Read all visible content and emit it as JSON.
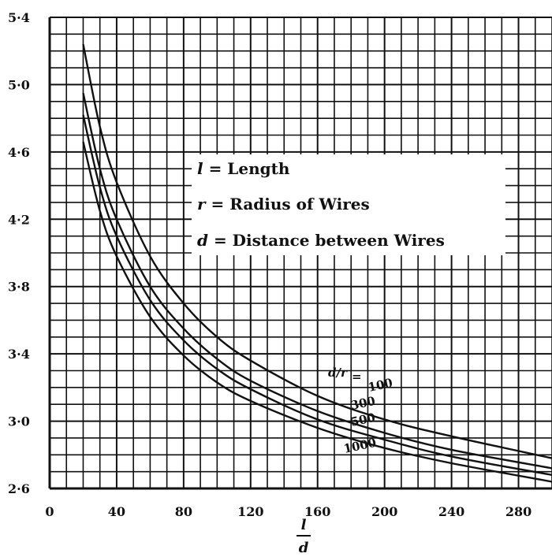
{
  "chart_data": {
    "type": "line",
    "title": "",
    "xlabel": {
      "numerator": "l",
      "denominator": "d"
    },
    "ylabel": "",
    "xlim": [
      0,
      300
    ],
    "ylim": [
      2.6,
      5.4
    ],
    "grid": true,
    "x_tick_labels": [
      "0",
      "40",
      "80",
      "120",
      "160",
      "200",
      "240",
      "280"
    ],
    "y_tick_labels": [
      "2·6",
      "3·0",
      "3·4",
      "3·8",
      "4·2",
      "4·6",
      "5·0",
      "5·4"
    ],
    "legend": {
      "placement": "center",
      "entries": [
        {
          "symbol": "l",
          "text": "Length"
        },
        {
          "symbol": "r",
          "text": "Radius of Wires"
        },
        {
          "symbol": "d",
          "text": "Distance between Wires"
        }
      ]
    },
    "curve_param_label": "d/r",
    "series": [
      {
        "name": "100",
        "x": [
          20,
          30,
          40,
          60,
          80,
          100,
          120,
          160,
          200,
          240,
          300
        ],
        "values": [
          5.24,
          4.75,
          4.42,
          3.98,
          3.7,
          3.5,
          3.36,
          3.15,
          3.01,
          2.91,
          2.78
        ]
      },
      {
        "name": "300",
        "x": [
          20,
          30,
          40,
          60,
          80,
          100,
          120,
          160,
          200,
          240,
          300
        ],
        "values": [
          4.95,
          4.5,
          4.2,
          3.8,
          3.55,
          3.37,
          3.24,
          3.06,
          2.93,
          2.83,
          2.72
        ]
      },
      {
        "name": "500",
        "x": [
          20,
          30,
          40,
          60,
          80,
          100,
          120,
          160,
          200,
          240,
          300
        ],
        "values": [
          4.82,
          4.39,
          4.1,
          3.72,
          3.48,
          3.31,
          3.19,
          3.01,
          2.89,
          2.79,
          2.68
        ]
      },
      {
        "name": "1000",
        "x": [
          20,
          30,
          40,
          60,
          80,
          100,
          120,
          160,
          200,
          240,
          300
        ],
        "values": [
          4.66,
          4.25,
          3.98,
          3.62,
          3.39,
          3.23,
          3.12,
          2.96,
          2.84,
          2.75,
          2.64
        ]
      }
    ]
  }
}
